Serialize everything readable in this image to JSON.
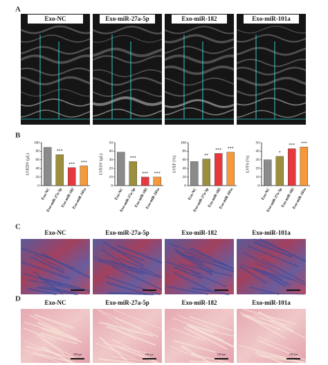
{
  "panels": {
    "a": "A",
    "b": "B",
    "c": "C",
    "d": "D"
  },
  "echo": {
    "titles": [
      "Exo-NC",
      "Exo-miR-27a-5p",
      "Exo-miR-182",
      "Exo-miR-101a"
    ]
  },
  "masson": {
    "titles": [
      "Exo-NC",
      "Exo-miR-27a-5p",
      "Exo-miR-182",
      "Exo-miR-101a"
    ]
  },
  "he": {
    "titles": [
      "Exo-NC",
      "Exo-miR-27a-5p",
      "Exo-miR-182",
      "Exo-miR-101a"
    ],
    "scale_label": "100 μm"
  },
  "chart_data": [
    {
      "type": "bar",
      "ylabel": "LVEDV (μL)",
      "categories": [
        "Exo-NC",
        "Exo-miR-27a-5p",
        "Exo-miR-182",
        "Exo-miR-101a"
      ],
      "values": [
        89,
        72,
        42,
        46
      ],
      "annotations": [
        null,
        "***",
        "***",
        "***"
      ],
      "colors": [
        "#8a8a8a",
        "#9c8f3c",
        "#e8383d",
        "#f5993a"
      ],
      "ylim": [
        0,
        100
      ],
      "yticks": [
        0,
        20,
        40,
        60,
        80,
        100
      ]
    },
    {
      "type": "bar",
      "ylabel": "LVESV (μL)",
      "categories": [
        "Exo-NC",
        "Exo-miR-27a-5p",
        "Exo-miR-182",
        "Exo-miR-101a"
      ],
      "values": [
        39,
        28,
        10,
        10
      ],
      "annotations": [
        null,
        "***",
        "***",
        "***"
      ],
      "colors": [
        "#8a8a8a",
        "#9c8f3c",
        "#e8383d",
        "#f5993a"
      ],
      "ylim": [
        0,
        50
      ],
      "yticks": [
        0,
        10,
        20,
        30,
        40,
        50
      ]
    },
    {
      "type": "bar",
      "ylabel": "LVEF (%)",
      "categories": [
        "Exo-NC",
        "Exo-miR-27a-5p",
        "Exo-miR-182",
        "Exo-miR-101a"
      ],
      "values": [
        56,
        62,
        75,
        78
      ],
      "annotations": [
        null,
        "**",
        "***",
        "***"
      ],
      "colors": [
        "#8a8a8a",
        "#9c8f3c",
        "#e8383d",
        "#f5993a"
      ],
      "ylim": [
        0,
        100
      ],
      "yticks": [
        0,
        20,
        40,
        60,
        80,
        100
      ]
    },
    {
      "type": "bar",
      "ylabel": "LVFS (%)",
      "categories": [
        "Exo-NC",
        "Exo-miR-27a-5p",
        "Exo-miR-182",
        "Exo-miR-101a"
      ],
      "values": [
        30,
        34,
        43,
        45
      ],
      "annotations": [
        null,
        "*",
        "***",
        "***"
      ],
      "colors": [
        "#8a8a8a",
        "#9c8f3c",
        "#e8383d",
        "#f5993a"
      ],
      "ylim": [
        0,
        50
      ],
      "yticks": [
        0,
        10,
        20,
        30,
        40,
        50
      ]
    }
  ]
}
